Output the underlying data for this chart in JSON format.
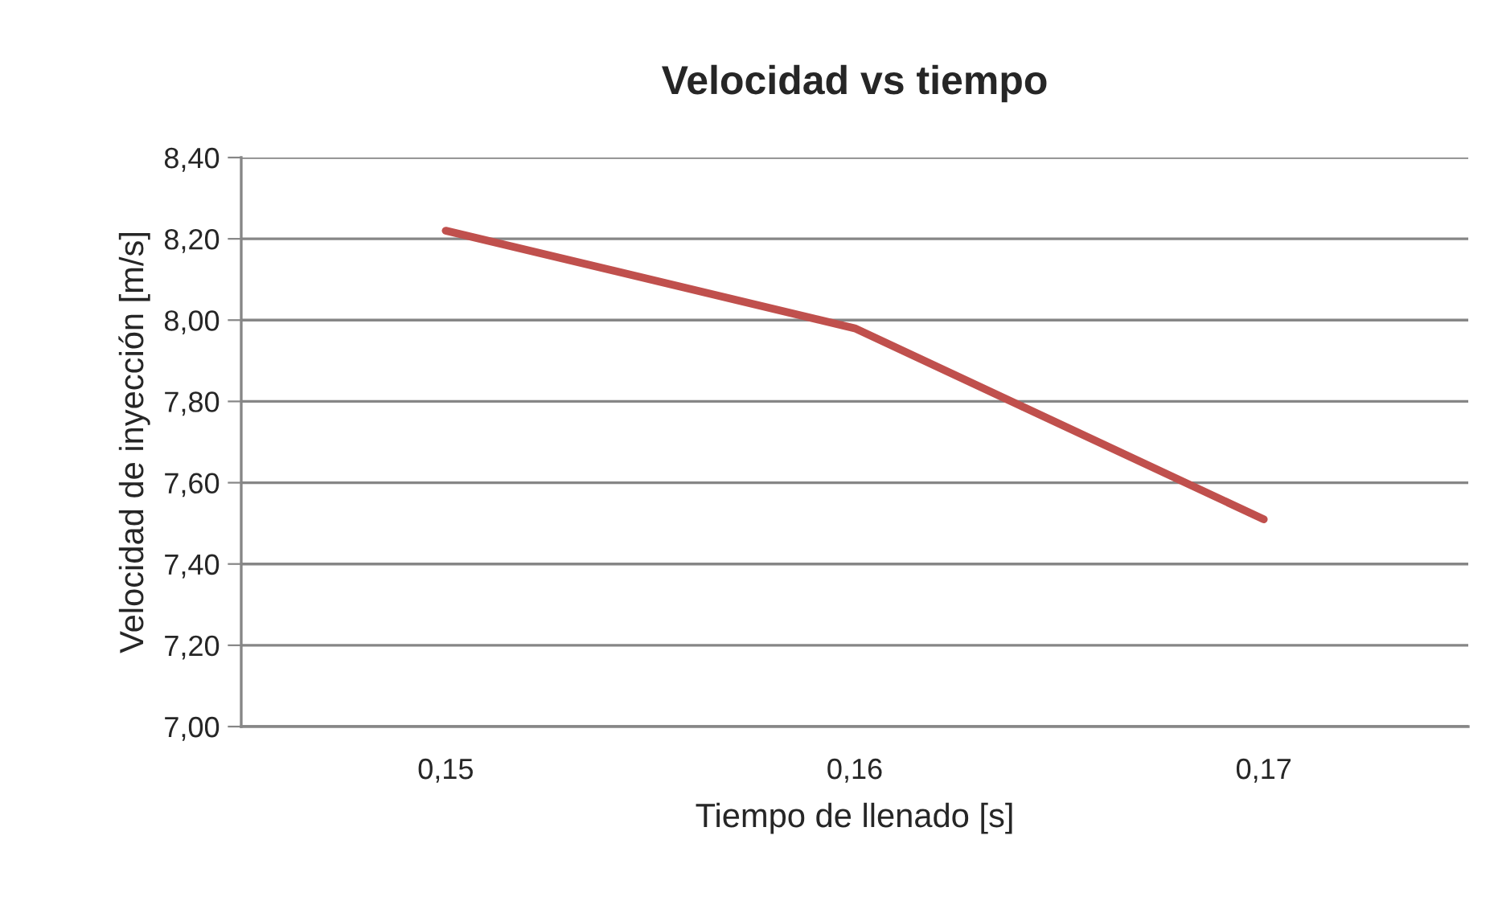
{
  "chart_data": {
    "type": "line",
    "title": "Velocidad vs tiempo",
    "xlabel": "Tiempo de llenado [s]",
    "ylabel": "Velocidad de inyección [m/s]",
    "categories": [
      "0,15",
      "0,16",
      "0,17"
    ],
    "series": [
      {
        "color": "#c0504d",
        "values": [
          8.22,
          7.98,
          7.51
        ]
      }
    ],
    "ylim": [
      7.0,
      8.4
    ],
    "yticks": [
      {
        "value": 7.0,
        "label": "7,00"
      },
      {
        "value": 7.2,
        "label": "7,20"
      },
      {
        "value": 7.4,
        "label": "7,40"
      },
      {
        "value": 7.6,
        "label": "7,60"
      },
      {
        "value": 7.8,
        "label": "7,80"
      },
      {
        "value": 8.0,
        "label": "8,00"
      },
      {
        "value": 8.2,
        "label": "8,20"
      },
      {
        "value": 8.4,
        "label": "8,40"
      }
    ],
    "grid": "y",
    "marker": "none",
    "line_style": "solid"
  }
}
